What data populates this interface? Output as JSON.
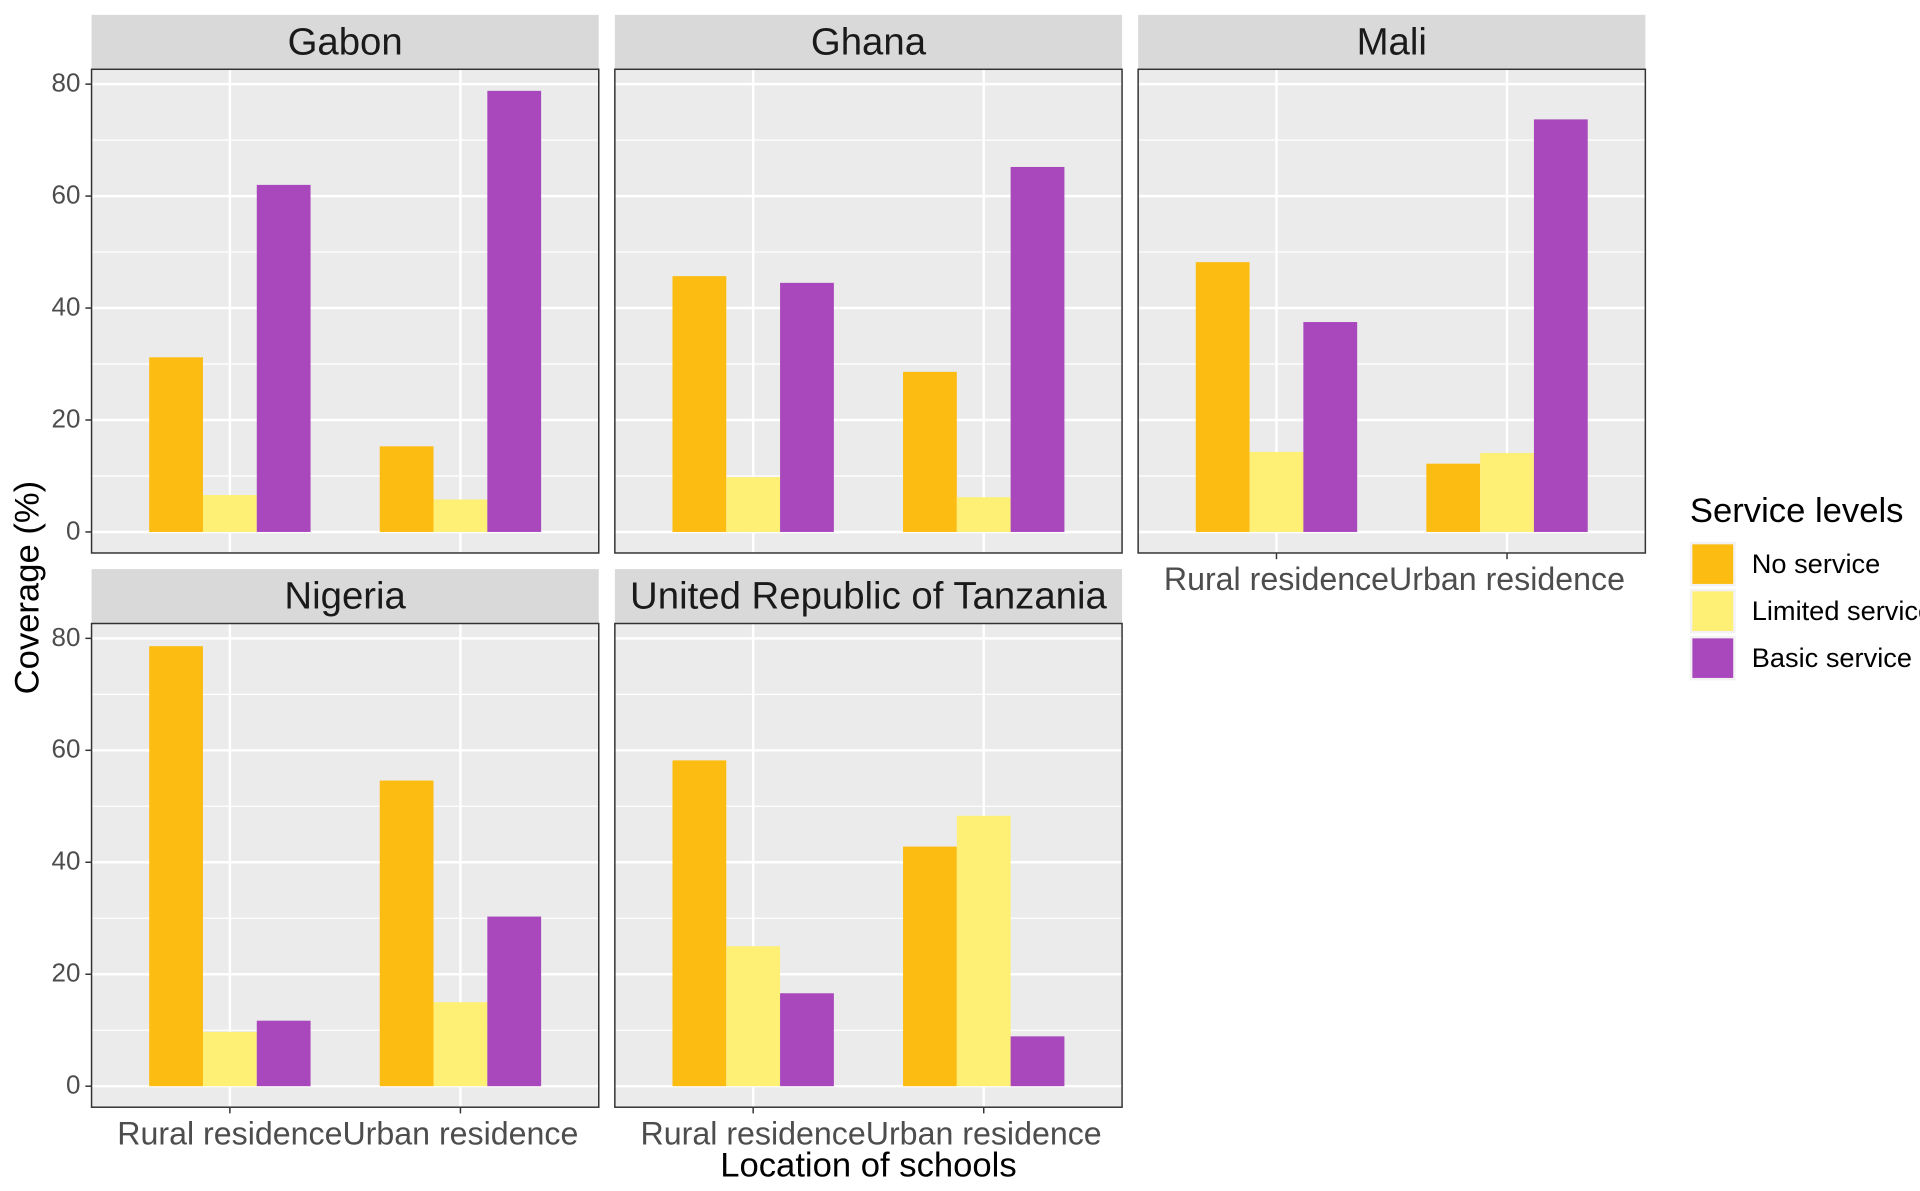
{
  "chart_data": {
    "type": "bar",
    "layout": "facet_wrap",
    "xlabel": "Location of schools",
    "ylabel": "Coverage (%)",
    "ylim": [
      0,
      85
    ],
    "yticks": [
      0,
      20,
      40,
      60,
      80
    ],
    "grid": true,
    "categories": [
      "Rural residence",
      "Urban residence"
    ],
    "legend": {
      "title": "Service levels",
      "position": "right",
      "entries": [
        "No service",
        "Limited service",
        "Basic service"
      ]
    },
    "series_colors": {
      "No service": "#FCBC12",
      "Limited service": "#FEEF75",
      "Basic service": "#A948BC"
    },
    "panels": [
      {
        "title": "Gabon",
        "series": [
          {
            "name": "No service",
            "values": [
              31.2,
              15.3
            ]
          },
          {
            "name": "Limited service",
            "values": [
              6.6,
              5.8
            ]
          },
          {
            "name": "Basic service",
            "values": [
              62.0,
              78.8
            ]
          }
        ]
      },
      {
        "title": "Ghana",
        "series": [
          {
            "name": "No service",
            "values": [
              45.7,
              28.6
            ]
          },
          {
            "name": "Limited service",
            "values": [
              9.8,
              6.2
            ]
          },
          {
            "name": "Basic service",
            "values": [
              44.5,
              65.2
            ]
          }
        ]
      },
      {
        "title": "Mali",
        "series": [
          {
            "name": "No service",
            "values": [
              48.2,
              12.2
            ]
          },
          {
            "name": "Limited service",
            "values": [
              14.3,
              14.1
            ]
          },
          {
            "name": "Basic service",
            "values": [
              37.5,
              73.7
            ]
          }
        ]
      },
      {
        "title": "Nigeria",
        "series": [
          {
            "name": "No service",
            "values": [
              78.6,
              54.6
            ]
          },
          {
            "name": "Limited service",
            "values": [
              9.7,
              15.0
            ]
          },
          {
            "name": "Basic service",
            "values": [
              11.7,
              30.3
            ]
          }
        ]
      },
      {
        "title": "United Republic of Tanzania",
        "series": [
          {
            "name": "No service",
            "values": [
              58.2,
              42.8
            ]
          },
          {
            "name": "Limited service",
            "values": [
              25.0,
              48.3
            ]
          },
          {
            "name": "Basic service",
            "values": [
              16.6,
              8.9
            ]
          }
        ]
      }
    ]
  }
}
